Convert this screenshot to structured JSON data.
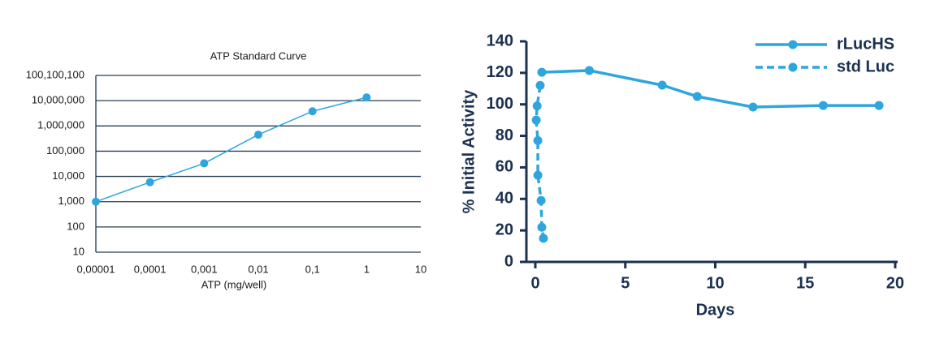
{
  "chart_data": [
    {
      "type": "line",
      "title": "ATP Standard Curve",
      "xlabel": "ATP (mg/well)",
      "xlog": true,
      "ylog": true,
      "grid": true,
      "color": "#2ea6dd",
      "x": [
        1e-05,
        0.0001,
        0.001,
        0.01,
        0.1,
        1
      ],
      "values": [
        1000,
        5900,
        33000,
        450000,
        3800000,
        13500000
      ],
      "xlim": [
        1e-05,
        10
      ],
      "xticks": [
        {
          "value": 1e-05,
          "label": "0,00001"
        },
        {
          "value": 0.0001,
          "label": "0,0001"
        },
        {
          "value": 0.001,
          "label": "0,001"
        },
        {
          "value": 0.01,
          "label": "0,01"
        },
        {
          "value": 0.1,
          "label": "0,1"
        },
        1,
        10
      ],
      "ylim": [
        10,
        100100100
      ],
      "yticks": [
        10,
        100,
        {
          "value": 1000,
          "label": "1,000"
        },
        {
          "value": 10000,
          "label": "10,000"
        },
        {
          "value": 100000,
          "label": "100,000"
        },
        {
          "value": 1000000,
          "label": "1,000,000"
        },
        {
          "value": 10000000,
          "label": "10,000,000"
        },
        {
          "value": 100100100,
          "label": "100,100,100"
        }
      ]
    },
    {
      "type": "line",
      "xlabel": "Days",
      "ylabel": "% Initial Activity",
      "grid": false,
      "legend": "top-right",
      "xlim": [
        0,
        20
      ],
      "xticks": [
        0,
        5,
        10,
        15,
        20
      ],
      "ylim": [
        0,
        140
      ],
      "yticks": [
        0,
        20,
        40,
        60,
        80,
        100,
        120,
        140
      ],
      "series": [
        {
          "name": "rLucHS",
          "color": "#2ea6dd",
          "dashed": false,
          "x": [
            0.36,
            3,
            7.05,
            9,
            12.1,
            16,
            19.1
          ],
          "values": [
            120.4,
            121.5,
            112.2,
            105,
            98.3,
            99.3,
            99.3
          ]
        },
        {
          "name": "std Luc",
          "color": "#2ea6dd",
          "dashed": true,
          "x": [
            0.27,
            0.1,
            0.05,
            0.14,
            0.14,
            0.32,
            0.36,
            0.45
          ],
          "values": [
            112,
            99,
            90,
            77,
            55,
            39,
            22,
            15
          ]
        }
      ]
    }
  ]
}
